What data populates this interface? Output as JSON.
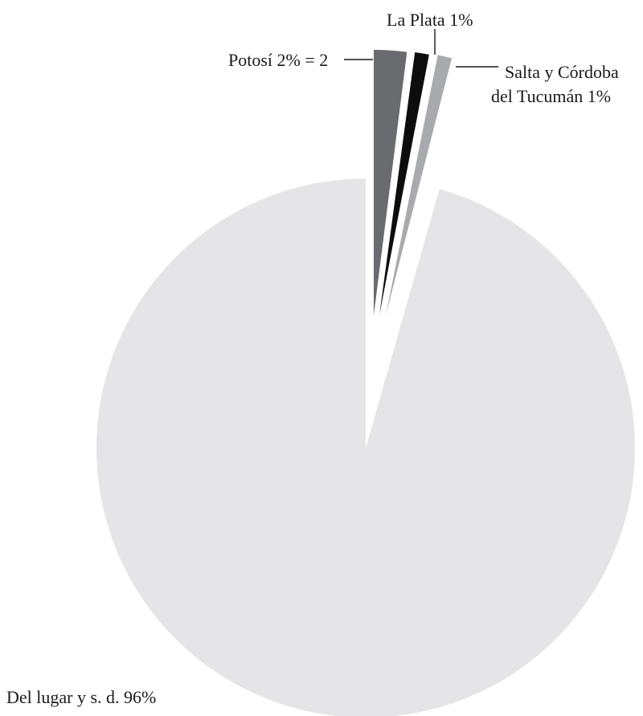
{
  "chart_data": {
    "type": "pie",
    "title": "",
    "slices": [
      {
        "label": "Del lugar y s. d. 96%",
        "value": 96,
        "color": "#e5e5e7"
      },
      {
        "label": "Potosí 2% = 2",
        "value": 2,
        "color": "#6a6b6f"
      },
      {
        "label": "La Plata 1%",
        "value": 1,
        "color": "#0d0d0d"
      },
      {
        "label_lines": [
          "Salta y Córdoba",
          "del Tucumán 1%"
        ],
        "value": 1,
        "color": "#a9aaad"
      }
    ]
  }
}
